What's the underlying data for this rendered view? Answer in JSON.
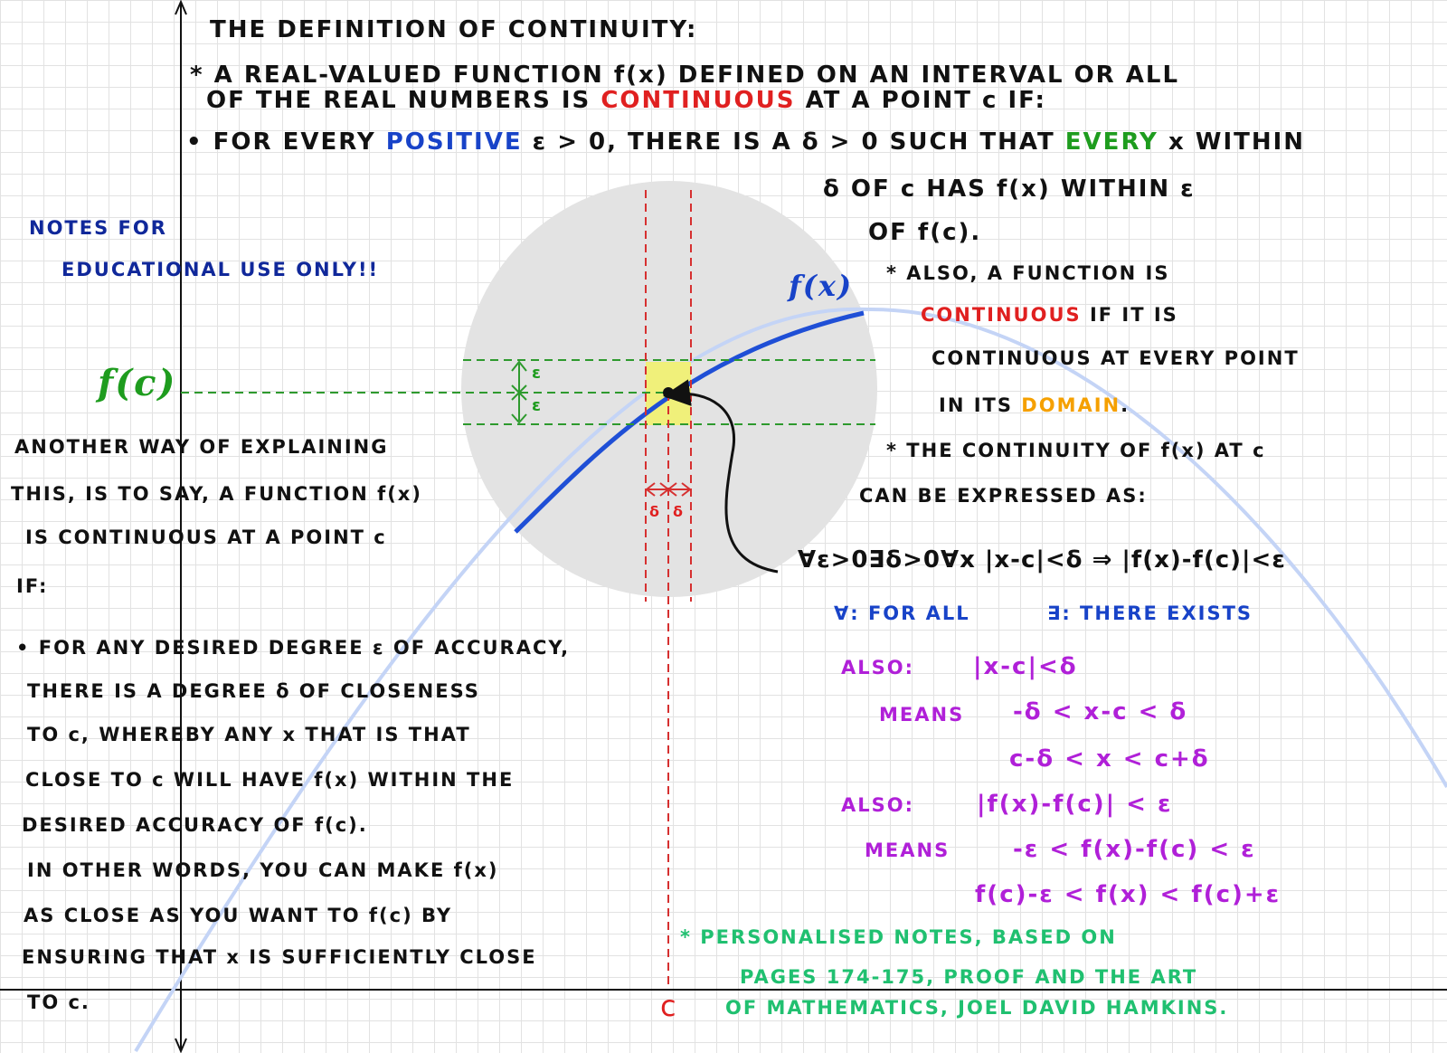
{
  "title": "THE DEFINITION OF CONTINUITY:",
  "definition": {
    "line1": "* A REAL-VALUED FUNCTION f(x) DEFINED ON AN INTERVAL OR ALL",
    "line2_pre": "OF THE REAL NUMBERS IS",
    "line2_highlight": "CONTINUOUS",
    "line2_post": "AT A POINT c IF:",
    "bullet_pre": "• FOR EVERY",
    "bullet_highlight": "POSITIVE",
    "bullet_mid": "ε > 0, THERE IS A δ > 0 SUCH THAT",
    "bullet_highlight2": "EVERY",
    "bullet_post": "x WITHIN",
    "line4": "δ OF c HAS f(x) WITHIN ε",
    "line5": "OF f(c)."
  },
  "side_note": {
    "line1": "NOTES FOR",
    "line2": "EDUCATIONAL USE ONLY!!"
  },
  "graph": {
    "curve_label": "f(x)",
    "fc_label": "f(c)",
    "epsilon_label": "ε",
    "delta_label": "δ",
    "c_label": "c"
  },
  "also_function": {
    "line1": "* ALSO, A FUNCTION IS",
    "line2_highlight": "CONTINUOUS",
    "line2_post": "IF IT IS",
    "line3": "CONTINUOUS AT EVERY POINT",
    "line4_pre": "IN ITS",
    "line4_highlight": "DOMAIN",
    "line4_post": "."
  },
  "expression": {
    "line1": "* THE CONTINUITY OF f(x) AT c",
    "line2": "CAN BE EXPRESSED AS:",
    "formula": "∀ε>0∃δ>0∀x |x-c|<δ ⇒ |f(x)-f(c)|<ε",
    "forall": "∀: FOR ALL",
    "exists": "∃: THERE EXISTS"
  },
  "also_block": {
    "also1": "ALSO:",
    "abs1": "|x-c|<δ",
    "means1": "MEANS",
    "ineq1": "-δ < x-c < δ",
    "ineq2": "c-δ < x < c+δ",
    "also2": "ALSO:",
    "abs2": "|f(x)-f(c)| < ε",
    "means2": "MEANS",
    "ineq3": "-ε < f(x)-f(c) < ε",
    "ineq4": "f(c)-ε < f(x) < f(c)+ε"
  },
  "another_way": {
    "lines": [
      "ANOTHER WAY OF EXPLAINING",
      "THIS, IS TO SAY, A FUNCTION f(x)",
      "IS CONTINUOUS AT A POINT c",
      "IF:"
    ]
  },
  "closeness": {
    "lines": [
      "• FOR ANY DESIRED DEGREE ε OF ACCURACY,",
      "THERE IS A DEGREE δ OF CLOSENESS",
      "TO c, WHEREBY ANY x THAT IS THAT",
      "CLOSE TO c WILL HAVE f(x) WITHIN THE",
      "DESIRED ACCURACY OF f(c).",
      "IN OTHER WORDS, YOU CAN MAKE f(x)",
      "AS CLOSE AS YOU WANT TO f(c) BY",
      "ENSURING THAT x IS SUFFICIENTLY CLOSE",
      "TO c."
    ]
  },
  "footnote": {
    "line1": "* PERSONALISED NOTES, BASED ON",
    "line2": "PAGES 174-175, PROOF AND THE ART",
    "line3": "OF MATHEMATICS, JOEL DAVID HAMKINS."
  },
  "colors": {
    "curve": "#1f4fd6",
    "faint_curve": "#c4d4f6",
    "circle": "#e3e3e3",
    "epsilon_lines": "#2e9a2e",
    "delta_lines": "#d63030",
    "highlight_box": "#f0f07a"
  }
}
